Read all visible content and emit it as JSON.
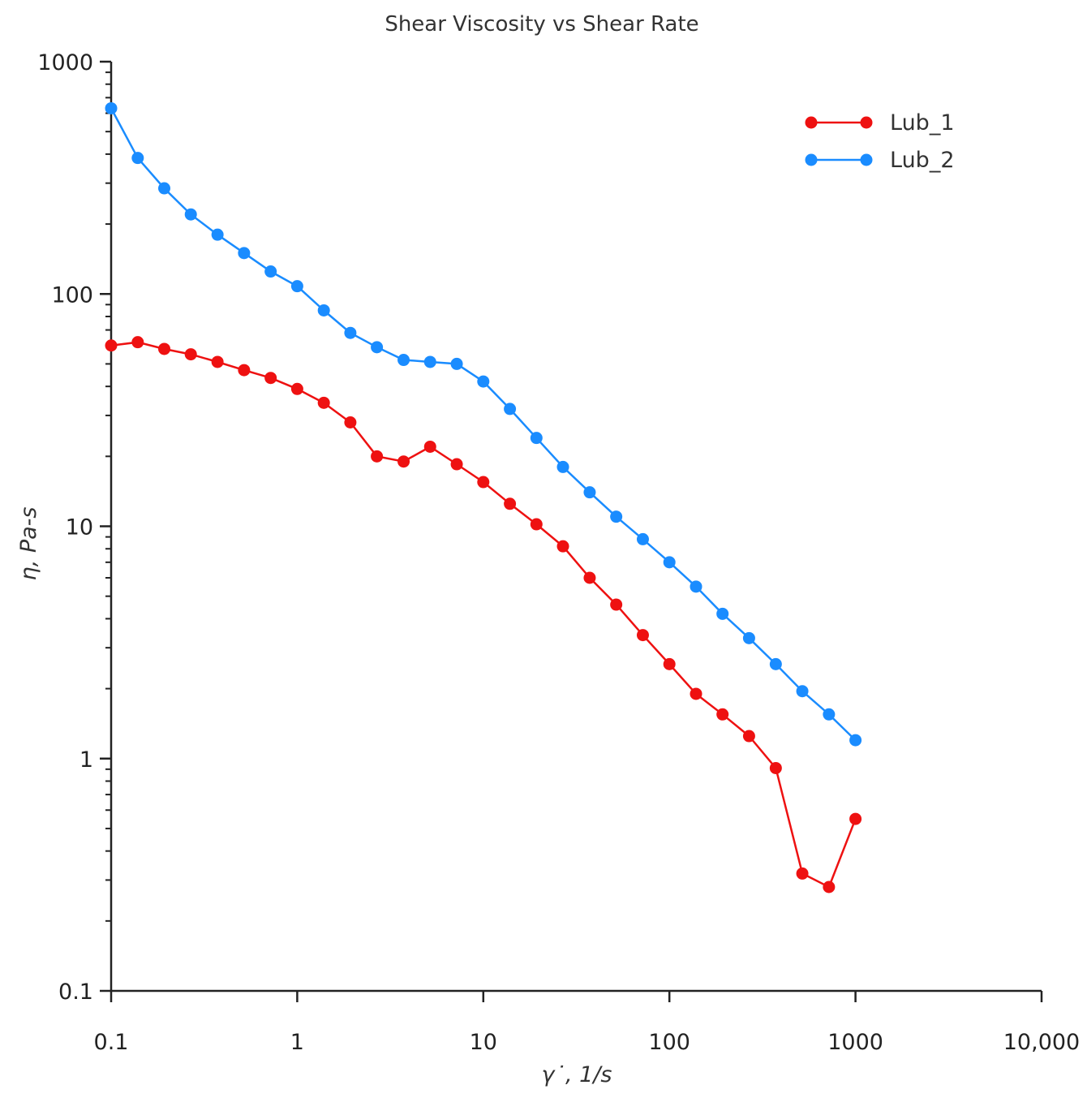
{
  "chart_data": {
    "type": "line",
    "title": "Shear Viscosity vs Shear Rate",
    "xlabel": "γ˙, 1/s",
    "ylabel": "η, Pa-s",
    "xscale": "log",
    "yscale": "log",
    "xlim": [
      0.1,
      10000
    ],
    "ylim": [
      0.1,
      1000
    ],
    "xticks": [
      0.1,
      1,
      10,
      100,
      1000,
      10000
    ],
    "xtick_labels": [
      "0.1",
      "1",
      "10",
      "100",
      "1000",
      "10,000"
    ],
    "yticks": [
      0.1,
      1,
      10,
      100,
      1000
    ],
    "ytick_labels": [
      "0.1",
      "1",
      "10",
      "100",
      "1000"
    ],
    "grid": false,
    "legend_position": "top-right",
    "x": [
      0.1,
      0.139,
      0.193,
      0.268,
      0.373,
      0.518,
      0.72,
      1.0,
      1.39,
      1.93,
      2.68,
      3.73,
      5.18,
      7.2,
      10.0,
      13.9,
      19.3,
      26.8,
      37.3,
      51.8,
      72.0,
      100,
      139,
      193,
      268,
      373,
      518,
      720,
      1000
    ],
    "series": [
      {
        "name": "Lub_1",
        "color": "#ee1111",
        "values": [
          60,
          62,
          58,
          55,
          51,
          47,
          43.5,
          39,
          34,
          28,
          20,
          19,
          22,
          18.5,
          15.5,
          12.5,
          10.2,
          8.2,
          6,
          4.6,
          3.4,
          2.55,
          1.9,
          1.55,
          1.25,
          0.91,
          0.32,
          0.28,
          0.55
        ]
      },
      {
        "name": "Lub_2",
        "color": "#1a8cff",
        "values": [
          630,
          385,
          285,
          220,
          180,
          150,
          125,
          108,
          85,
          68,
          59,
          52,
          51,
          50,
          42,
          32,
          24,
          18,
          14,
          11,
          8.8,
          7,
          5.5,
          4.2,
          3.3,
          2.55,
          1.95,
          1.55,
          1.2
        ]
      }
    ]
  }
}
